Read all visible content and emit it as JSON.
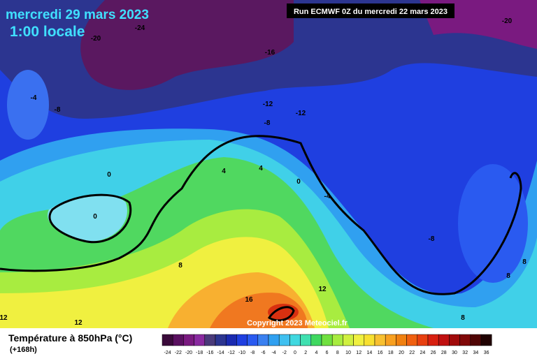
{
  "header": {
    "date": "mercredi 29 mars 2023",
    "time": "1:00 locale",
    "run": "Run ECMWF 0Z du mercredi 22 mars 2023"
  },
  "contour_labels": [
    "-24",
    "-20",
    "-20",
    "-16",
    "-4",
    "-8",
    "-12",
    "-12",
    "-8",
    "4",
    "4",
    "0",
    "0",
    "0",
    "-4",
    "-8",
    "8",
    "8",
    "8",
    "12",
    "16",
    "12",
    "8",
    "12"
  ],
  "copyright": "Copyright 2023 Meteociel.fr",
  "footer": {
    "title": "Température à 850hPa (°C)",
    "lead": "(+168h)"
  },
  "scale": {
    "labels": [
      "-24",
      "-22",
      "-20",
      "-18",
      "-16",
      "-14",
      "-12",
      "-10",
      "-8",
      "-6",
      "-4",
      "-2",
      "0",
      "2",
      "4",
      "6",
      "8",
      "10",
      "12",
      "14",
      "16",
      "18",
      "20",
      "22",
      "24",
      "26",
      "28",
      "30",
      "32",
      "34",
      "36"
    ],
    "colors": [
      "#3a0a3a",
      "#5a1060",
      "#7a1a80",
      "#8a2aa0",
      "#4a3a7a",
      "#2c3590",
      "#1a2ab0",
      "#1f3fe0",
      "#2a5af0",
      "#3a80f0",
      "#30a0f0",
      "#40c0f0",
      "#40d8e0",
      "#40e0b0",
      "#40d860",
      "#70e040",
      "#a8ec40",
      "#d0f040",
      "#f0f040",
      "#f8e030",
      "#f8c030",
      "#f8a020",
      "#f08010",
      "#f06010",
      "#e84010",
      "#d82010",
      "#c01010",
      "#a00a0a",
      "#800808",
      "#500505",
      "#200202"
    ]
  }
}
